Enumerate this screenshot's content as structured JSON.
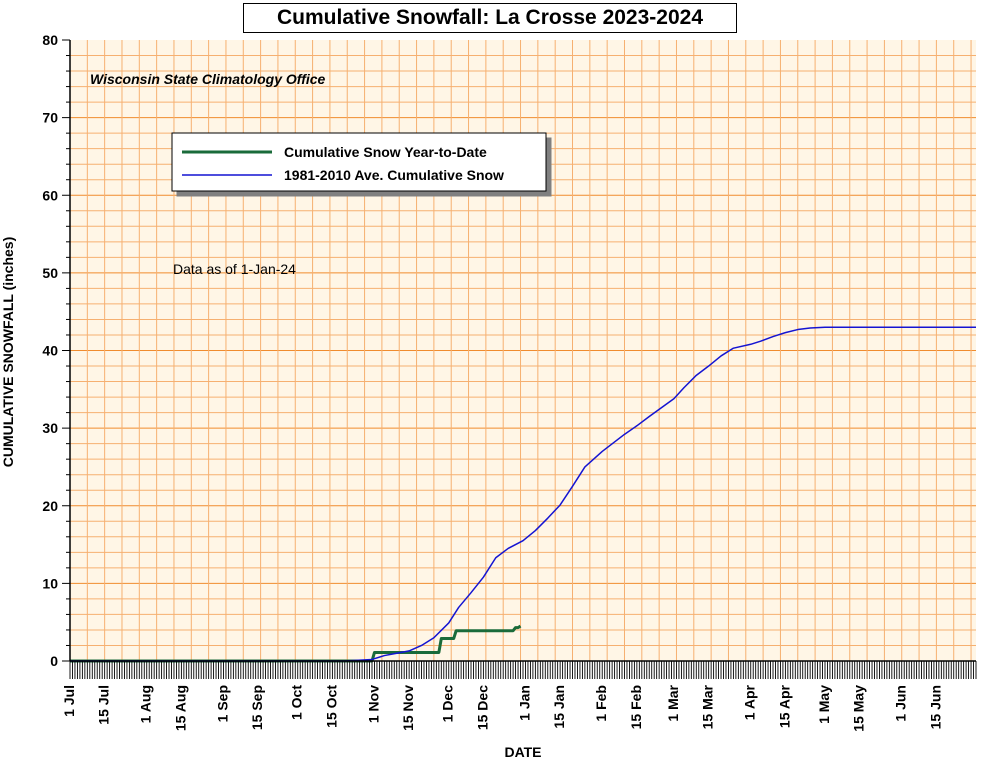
{
  "chart_data": {
    "type": "line",
    "title": "Cumulative Snowfall: La Crosse 2023-2024",
    "source": "Wisconsin State Climatology Office",
    "annotation": "Data as of 1-Jan-24",
    "xlabel": "DATE",
    "ylabel": "CUMULATIVE SNOWFALL (inches)",
    "xlim": [
      "2023-07-01",
      "2024-07-01"
    ],
    "ylim": [
      0,
      80
    ],
    "yticks": [
      0,
      10,
      20,
      30,
      40,
      50,
      60,
      70,
      80
    ],
    "grid": true,
    "legend_position": "top-left",
    "xticks": [
      {
        "date": "2023-07-01",
        "label": "1 Jul"
      },
      {
        "date": "2023-07-15",
        "label": "15 Jul"
      },
      {
        "date": "2023-08-01",
        "label": "1 Aug"
      },
      {
        "date": "2023-08-15",
        "label": "15 Aug"
      },
      {
        "date": "2023-09-01",
        "label": "1 Sep"
      },
      {
        "date": "2023-09-15",
        "label": "15 Sep"
      },
      {
        "date": "2023-10-01",
        "label": "1 Oct"
      },
      {
        "date": "2023-10-15",
        "label": "15 Oct"
      },
      {
        "date": "2023-11-01",
        "label": "1 Nov"
      },
      {
        "date": "2023-11-15",
        "label": "15 Nov"
      },
      {
        "date": "2023-12-01",
        "label": "1 Dec"
      },
      {
        "date": "2023-12-15",
        "label": "15 Dec"
      },
      {
        "date": "2024-01-01",
        "label": "1 Jan"
      },
      {
        "date": "2024-01-15",
        "label": "15 Jan"
      },
      {
        "date": "2024-02-01",
        "label": "1 Feb"
      },
      {
        "date": "2024-02-15",
        "label": "15 Feb"
      },
      {
        "date": "2024-03-01",
        "label": "1 Mar"
      },
      {
        "date": "2024-03-15",
        "label": "15 Mar"
      },
      {
        "date": "2024-04-01",
        "label": "1 Apr"
      },
      {
        "date": "2024-04-15",
        "label": "15 Apr"
      },
      {
        "date": "2024-05-01",
        "label": "1 May"
      },
      {
        "date": "2024-05-15",
        "label": "15 May"
      },
      {
        "date": "2024-06-01",
        "label": "1 Jun"
      },
      {
        "date": "2024-06-15",
        "label": "15 Jun"
      }
    ],
    "series": [
      {
        "name": "Cumulative Snow Year-to-Date",
        "color": "#1a6b3a",
        "points": [
          [
            "2023-07-01",
            0
          ],
          [
            "2023-10-31",
            0
          ],
          [
            "2023-11-01",
            1.1
          ],
          [
            "2023-11-27",
            1.1
          ],
          [
            "2023-11-28",
            2.9
          ],
          [
            "2023-12-03",
            2.9
          ],
          [
            "2023-12-04",
            3.9
          ],
          [
            "2023-12-27",
            3.9
          ],
          [
            "2023-12-28",
            4.3
          ],
          [
            "2023-12-29",
            4.3
          ],
          [
            "2023-12-30",
            4.5
          ]
        ]
      },
      {
        "name": "1981-2010 Ave. Cumulative Snow",
        "color": "#1414d2",
        "points": [
          [
            "2023-07-01",
            0
          ],
          [
            "2023-10-20",
            0
          ],
          [
            "2023-10-31",
            0.2
          ],
          [
            "2023-11-05",
            0.7
          ],
          [
            "2023-11-10",
            1.0
          ],
          [
            "2023-11-15",
            1.3
          ],
          [
            "2023-11-20",
            2.0
          ],
          [
            "2023-11-25",
            3.0
          ],
          [
            "2023-12-01",
            4.9
          ],
          [
            "2023-12-05",
            6.9
          ],
          [
            "2023-12-10",
            8.8
          ],
          [
            "2023-12-15",
            10.8
          ],
          [
            "2023-12-20",
            13.3
          ],
          [
            "2023-12-25",
            14.5
          ],
          [
            "2023-12-31",
            15.5
          ],
          [
            "2024-01-05",
            16.8
          ],
          [
            "2024-01-10",
            18.4
          ],
          [
            "2024-01-15",
            20.1
          ],
          [
            "2024-01-20",
            22.5
          ],
          [
            "2024-01-25",
            25.0
          ],
          [
            "2024-02-01",
            27.0
          ],
          [
            "2024-02-10",
            29.2
          ],
          [
            "2024-02-15",
            30.3
          ],
          [
            "2024-02-20",
            31.5
          ],
          [
            "2024-03-01",
            33.8
          ],
          [
            "2024-03-05",
            35.2
          ],
          [
            "2024-03-10",
            36.8
          ],
          [
            "2024-03-15",
            38.0
          ],
          [
            "2024-03-20",
            39.3
          ],
          [
            "2024-03-25",
            40.3
          ],
          [
            "2024-04-01",
            40.8
          ],
          [
            "2024-04-05",
            41.2
          ],
          [
            "2024-04-10",
            41.8
          ],
          [
            "2024-04-15",
            42.3
          ],
          [
            "2024-04-20",
            42.7
          ],
          [
            "2024-04-25",
            42.9
          ],
          [
            "2024-05-01",
            43.0
          ],
          [
            "2024-07-01",
            43.0
          ]
        ]
      }
    ]
  }
}
